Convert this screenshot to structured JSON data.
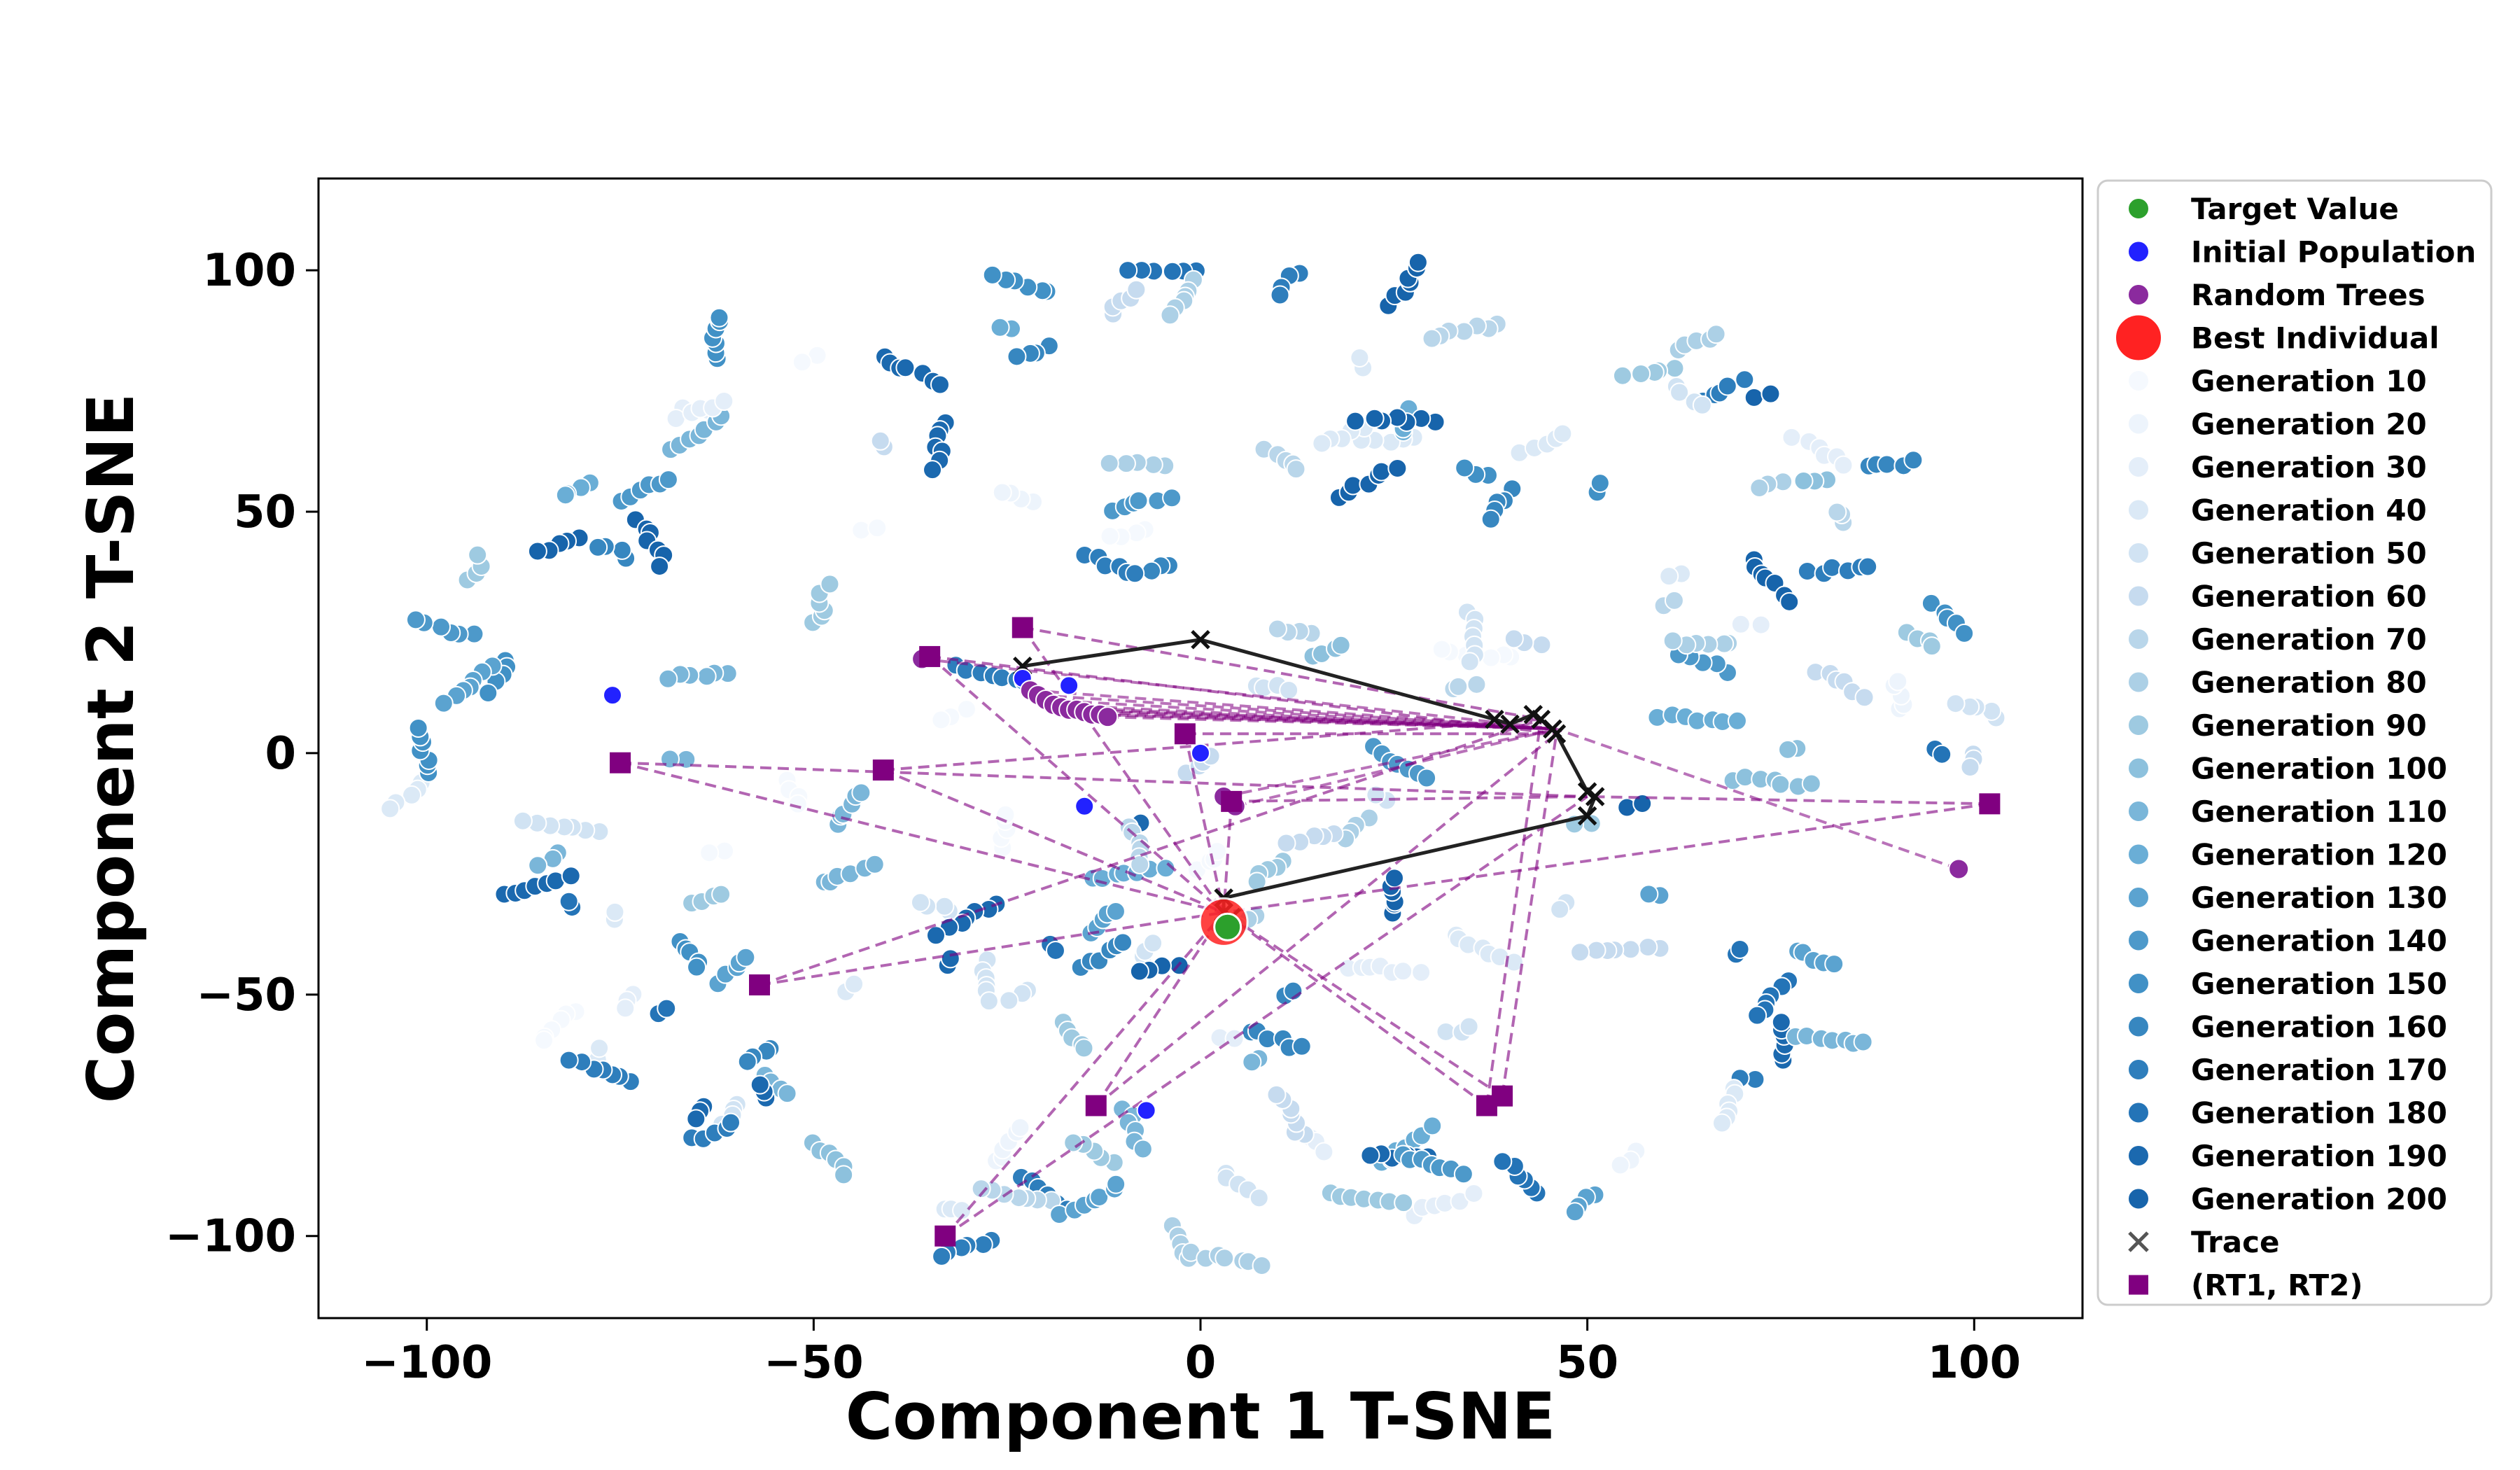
{
  "chart_data": {
    "type": "scatter",
    "title": "",
    "xlabel": "Component 1 T-SNE",
    "ylabel": "Component 2 T-SNE",
    "xlim": [
      -114,
      114
    ],
    "ylim": [
      -117,
      119
    ],
    "xticks": [
      -100,
      -50,
      0,
      50,
      100
    ],
    "yticks": [
      -100,
      -50,
      0,
      50,
      100
    ],
    "xtick_labels": [
      "−100",
      "−50",
      "0",
      "50",
      "100"
    ],
    "ytick_labels": [
      "−100",
      "−50",
      "0",
      "50",
      "100"
    ],
    "grid": false,
    "legend_position": "right, outside plot",
    "legend": [
      {
        "label": "Target Value",
        "marker": "circle",
        "color": "#2ca02c"
      },
      {
        "label": "Initial Population",
        "marker": "circle",
        "color": "#2222ff"
      },
      {
        "label": "Random Trees",
        "marker": "circle",
        "color": "#8b2a9e"
      },
      {
        "label": "Best Individual",
        "marker": "circle-large",
        "color": "#ff2222"
      },
      {
        "label": "Generation 10",
        "marker": "circle",
        "color": "#f5f9fe"
      },
      {
        "label": "Generation 20",
        "marker": "circle",
        "color": "#edf4fc"
      },
      {
        "label": "Generation 30",
        "marker": "circle",
        "color": "#e4eef9"
      },
      {
        "label": "Generation 40",
        "marker": "circle",
        "color": "#dbe9f6"
      },
      {
        "label": "Generation 50",
        "marker": "circle",
        "color": "#d1e3f3"
      },
      {
        "label": "Generation 60",
        "marker": "circle",
        "color": "#c6dbef"
      },
      {
        "label": "Generation 70",
        "marker": "circle",
        "color": "#b9d6ea"
      },
      {
        "label": "Generation 80",
        "marker": "circle",
        "color": "#acd0e6"
      },
      {
        "label": "Generation 90",
        "marker": "circle",
        "color": "#9ecae1"
      },
      {
        "label": "Generation 100",
        "marker": "circle",
        "color": "#8dc1dd"
      },
      {
        "label": "Generation 110",
        "marker": "circle",
        "color": "#7ab6d9"
      },
      {
        "label": "Generation 120",
        "marker": "circle",
        "color": "#6aaed6"
      },
      {
        "label": "Generation 130",
        "marker": "circle",
        "color": "#5ba3d0"
      },
      {
        "label": "Generation 140",
        "marker": "circle",
        "color": "#4d99ca"
      },
      {
        "label": "Generation 150",
        "marker": "circle",
        "color": "#4191c6"
      },
      {
        "label": "Generation 160",
        "marker": "circle",
        "color": "#3787c0"
      },
      {
        "label": "Generation 170",
        "marker": "circle",
        "color": "#2e7ebc"
      },
      {
        "label": "Generation 180",
        "marker": "circle",
        "color": "#2474b7"
      },
      {
        "label": "Generation 190",
        "marker": "circle",
        "color": "#1b69af"
      },
      {
        "label": "Generation 200",
        "marker": "circle",
        "color": "#1764ab"
      },
      {
        "label": "Trace",
        "marker": "x",
        "color": "#555555"
      },
      {
        "label": "(RT1, RT2)",
        "marker": "square",
        "color": "#800080"
      }
    ],
    "target_value": [
      {
        "x": 3.5,
        "y": -36
      }
    ],
    "best_individual": [
      {
        "x": 3,
        "y": -35
      }
    ],
    "trace": [
      {
        "x": -23,
        "y": 18
      },
      {
        "x": 0,
        "y": 23.5
      },
      {
        "x": 38,
        "y": 7
      },
      {
        "x": 40,
        "y": 6
      },
      {
        "x": 43,
        "y": 8
      },
      {
        "x": 44,
        "y": 7
      },
      {
        "x": 45.5,
        "y": 5
      },
      {
        "x": 46,
        "y": 4
      },
      {
        "x": 50,
        "y": -8
      },
      {
        "x": 51,
        "y": -9
      },
      {
        "x": 50,
        "y": -13
      },
      {
        "x": 3,
        "y": -30
      },
      {
        "x": 3,
        "y": -33
      },
      {
        "x": 4,
        "y": -34
      }
    ],
    "rt_pairs": [
      {
        "x": -23,
        "y": 26
      },
      {
        "x": -35,
        "y": 20
      },
      {
        "x": -75,
        "y": -2
      },
      {
        "x": -41,
        "y": -3.5
      },
      {
        "x": -2,
        "y": 4
      },
      {
        "x": 102,
        "y": -10.5
      },
      {
        "x": -57,
        "y": -48
      },
      {
        "x": -13.5,
        "y": -73
      },
      {
        "x": -33,
        "y": -100
      },
      {
        "x": 37,
        "y": -73
      },
      {
        "x": 39,
        "y": -71
      },
      {
        "x": 4,
        "y": -10
      }
    ],
    "random_trees": [
      {
        "x": -22,
        "y": 13
      },
      {
        "x": -21,
        "y": 12
      },
      {
        "x": -20,
        "y": 11
      },
      {
        "x": -19,
        "y": 10
      },
      {
        "x": -18,
        "y": 9.5
      },
      {
        "x": -17,
        "y": 9
      },
      {
        "x": -16,
        "y": 9
      },
      {
        "x": -15,
        "y": 8.5
      },
      {
        "x": -14,
        "y": 8
      },
      {
        "x": -13,
        "y": 8
      },
      {
        "x": -12,
        "y": 7.5
      },
      {
        "x": -36,
        "y": 19.5
      },
      {
        "x": 3,
        "y": -9
      },
      {
        "x": 4.5,
        "y": -11
      },
      {
        "x": 98,
        "y": -24
      }
    ],
    "initial_population": [
      {
        "x": -76,
        "y": 12
      },
      {
        "x": -23,
        "y": 15.5
      },
      {
        "x": -17,
        "y": 14
      },
      {
        "x": -7,
        "y": -74
      },
      {
        "x": 0,
        "y": 0
      },
      {
        "x": -15,
        "y": -11
      }
    ],
    "generation_points_note": "Approximately 900 points arranged in curved clusters spanning x in [-105, 102] and y in [-106, 108], colored by generation from Generation 10 (lightest) to Generation 200 (darkest)."
  }
}
